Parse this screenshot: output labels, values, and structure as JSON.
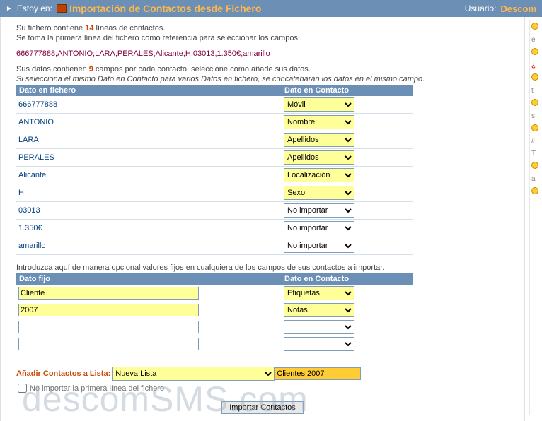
{
  "topbar": {
    "estoy_en": "Estoy en:",
    "title": "Importación de Contactos desde Fichero",
    "usuario_label": "Usuario:",
    "username": "Descom"
  },
  "intro": {
    "su_fichero_pre": "Su fichero contiene ",
    "num_lineas": "14",
    "su_fichero_post": " líneas de contactos.",
    "se_toma": "Se toma la primera línea del fichero como referencia para seleccionar los campos:",
    "sample_line": "666777888;ANTONIO;LARA;PERALES;Alicante;H;03013;1.350€;amarillo",
    "sus_datos_pre": "Sus datos contienen ",
    "num_campos": "9",
    "sus_datos_post": " campos por cada contacto, seleccione cómo añade sus datos.",
    "concat_note": "Si selecciona el mismo Dato en Contacto para varios Datos en fichero, se concatenarán los datos en el mismo campo."
  },
  "headers": {
    "dato_fichero": "Dato en fichero",
    "dato_contacto": "Dato en Contacto",
    "dato_fijo": "Dato fijo"
  },
  "select_options": [
    "Móvil",
    "Nombre",
    "Apellidos",
    "Localización",
    "Sexo",
    "Etiquetas",
    "Notas",
    "No importar"
  ],
  "mapping": [
    {
      "data": "666777888",
      "selected": "Móvil",
      "yellow": true
    },
    {
      "data": "ANTONIO",
      "selected": "Nombre",
      "yellow": true
    },
    {
      "data": "LARA",
      "selected": "Apellidos",
      "yellow": true
    },
    {
      "data": "PERALES",
      "selected": "Apellidos",
      "yellow": true
    },
    {
      "data": "Alicante",
      "selected": "Localización",
      "yellow": true
    },
    {
      "data": "H",
      "selected": "Sexo",
      "yellow": true
    },
    {
      "data": "03013",
      "selected": "No importar",
      "yellow": false
    },
    {
      "data": "1.350€",
      "selected": "No importar",
      "yellow": false
    },
    {
      "data": "amarillo",
      "selected": "No importar",
      "yellow": false
    }
  ],
  "fixed_intro": "Introduzca aquí de manera opcional valores fijos en cualquiera de los campos de sus contactos a importar.",
  "fixed_rows": [
    {
      "value": "Cliente",
      "selected": "Etiquetas",
      "yellow": true
    },
    {
      "value": "2007",
      "selected": "Notas",
      "yellow": true
    },
    {
      "value": "",
      "selected": "",
      "yellow": false
    },
    {
      "value": "",
      "selected": "",
      "yellow": false
    }
  ],
  "addlist": {
    "label": "Añadir Contactos a Lista: ",
    "selected": "Nueva Lista",
    "options": [
      "Nueva Lista"
    ],
    "new_name": "Clientes 2007"
  },
  "chk": {
    "label": "No importar la primera línea del fichero",
    "checked": false
  },
  "button": {
    "label": "Importar Contactos"
  },
  "watermark": "descomSMS.com"
}
